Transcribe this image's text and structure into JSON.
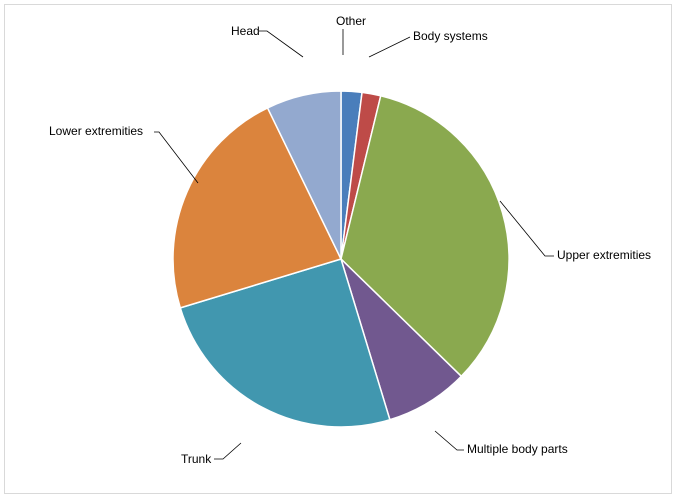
{
  "chart_data": {
    "type": "pie",
    "title": "",
    "slices": [
      {
        "label": "Other",
        "value": 2.0,
        "color": "#4a7ebb"
      },
      {
        "label": "Body systems",
        "value": 1.8,
        "color": "#be4b48"
      },
      {
        "label": "Upper extremities",
        "value": 33.5,
        "color": "#8aa94f"
      },
      {
        "label": "Multiple body parts",
        "value": 8.0,
        "color": "#71588f"
      },
      {
        "label": "Trunk",
        "value": 25.0,
        "color": "#4197af"
      },
      {
        "label": "Lower extremities",
        "value": 22.5,
        "color": "#db843d"
      },
      {
        "label": "Head",
        "value": 7.2,
        "color": "#93a9cf"
      }
    ]
  }
}
